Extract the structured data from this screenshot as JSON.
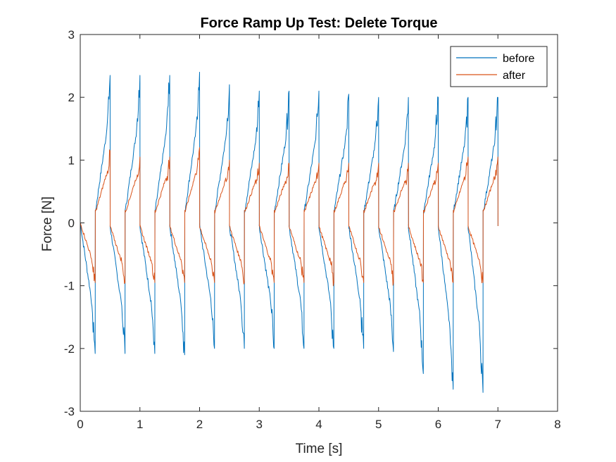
{
  "chart_data": {
    "type": "line",
    "title": "Force Ramp Up Test: Delete Torque",
    "xlabel": "Time [s]",
    "ylabel": "Force [N]",
    "xlim": [
      0,
      8
    ],
    "ylim": [
      -3,
      3
    ],
    "xticks": [
      "0",
      "1",
      "2",
      "3",
      "4",
      "5",
      "6",
      "7",
      "8"
    ],
    "yticks": [
      "-3",
      "-2",
      "-1",
      "0",
      "1",
      "2",
      "3"
    ],
    "grid": false,
    "legend_position": "top-right",
    "period": 0.5,
    "series": [
      {
        "name": "before",
        "color": "#0072BD",
        "shape": "ramp-sawtooth",
        "x_start": 0,
        "x_end": 7.5,
        "cycle_peaks": [
          2.35,
          2.35,
          2.35,
          2.4,
          2.2,
          2.1,
          2.1,
          2.1,
          2.05,
          2.0,
          2.0,
          2.0,
          2.0,
          2.0
        ],
        "cycle_troughs": [
          -2.08,
          -2.08,
          -2.08,
          -2.1,
          -2.0,
          -2.0,
          -2.0,
          -2.0,
          -2.0,
          -2.0,
          -2.05,
          -2.4,
          -2.65,
          -2.7
        ],
        "end_value": 1.95
      },
      {
        "name": "after",
        "color": "#D95319",
        "shape": "ramp-sawtooth",
        "x_start": 0,
        "x_end": 7.5,
        "cycle_peaks": [
          1.15,
          1.05,
          1.05,
          1.2,
          1.0,
          0.95,
          0.95,
          0.95,
          0.95,
          0.95,
          0.95,
          0.95,
          1.05,
          1.05
        ],
        "cycle_troughs": [
          -0.95,
          -0.95,
          -0.95,
          -0.95,
          -0.95,
          -0.95,
          -0.95,
          -0.95,
          -0.95,
          -0.95,
          -0.95,
          -0.95,
          -0.95,
          -0.95
        ],
        "end_value": 0.95
      }
    ]
  }
}
